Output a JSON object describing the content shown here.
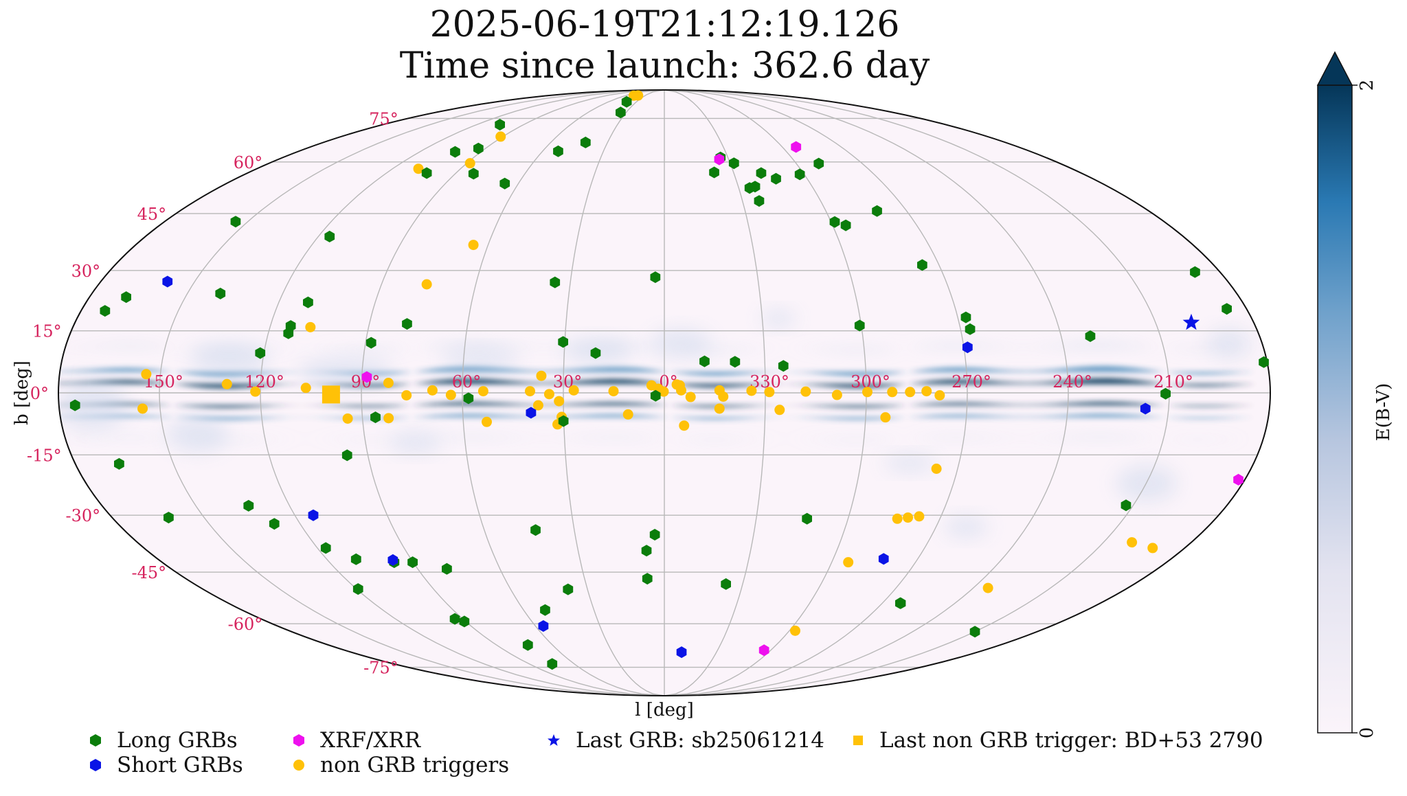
{
  "title": {
    "line1": "2025-06-19T21:12:19.126",
    "line2": "Time since launch: 362.6 day"
  },
  "chart_data": {
    "type": "scatter",
    "projection": "mollweide",
    "xlabel": "l [deg]",
    "ylabel": "b [deg]",
    "longitude_ticks": [
      "150°",
      "120°",
      "90°",
      "60°",
      "30°",
      "0°",
      "330°",
      "300°",
      "270°",
      "240°",
      "210°"
    ],
    "latitude_ticks": [
      "75°",
      "60°",
      "45°",
      "30°",
      "15°",
      "0°",
      "-15°",
      "-30°",
      "-45°",
      "-60°",
      "-75°"
    ],
    "grid": true,
    "colorbar": {
      "label": "E(B-V)",
      "min_label": "0",
      "max_label": "2",
      "min": 0,
      "max": 2,
      "extend": "max"
    },
    "colors": {
      "long_grb": "#0b7d0b",
      "short_grb": "#0a14e6",
      "xrf": "#ee10ee",
      "non_grb": "#ffc107",
      "grid": "#b8b8b8",
      "tick": "#d6245e",
      "dust_dark": "#053658",
      "dust_mid": "#2f7ab0",
      "dust_light": "#c6d4ea",
      "background": "#fbf4fa"
    },
    "legend": [
      {
        "key": "long_grb",
        "label": "Long GRBs"
      },
      {
        "key": "short_grb",
        "label": "Short GRBs"
      },
      {
        "key": "xrf",
        "label": "XRF/XRR"
      },
      {
        "key": "non_grb",
        "label": "non GRB triggers"
      },
      {
        "key": "last_grb",
        "label": "Last GRB: sb25061214"
      },
      {
        "key": "last_non_grb",
        "label": "Last non GRB trigger: BD+53 2790"
      }
    ],
    "series": [
      {
        "name": "Long GRBs",
        "key": "long_grb",
        "points": [
          [
            154.4,
            42.8
          ],
          [
            168.5,
            23.3
          ],
          [
            172.6,
            19.9
          ],
          [
            139.6,
            24.2
          ],
          [
            116.1,
            38.8
          ],
          [
            110.9,
            22.0
          ],
          [
            113.8,
            16.2
          ],
          [
            113.9,
            14.4
          ],
          [
            121.1,
            9.6
          ],
          [
            88.3,
            12.1
          ],
          [
            78.5,
            16.7
          ],
          [
            93.5,
            64.3
          ],
          [
            102.6,
            63.2
          ],
          [
            105.1,
            72.6
          ],
          [
            102.6,
            56.6
          ],
          [
            82.1,
            56.4
          ],
          [
            65.6,
            53.5
          ],
          [
            52.3,
            63.4
          ],
          [
            40.4,
            82.2
          ],
          [
            34.3,
            77.4
          ],
          [
            41.6,
            66.3
          ],
          [
            2.9,
            28.3
          ],
          [
            30.5,
            12.3
          ],
          [
            20.6,
            9.6
          ],
          [
            34.9,
            27.0
          ],
          [
            -12.0,
            7.6
          ],
          [
            -21.1,
            7.5
          ],
          [
            -35.5,
            6.5
          ],
          [
            -59.5,
            16.3
          ],
          [
            -64.7,
            41.8
          ],
          [
            -70.2,
            59.5
          ],
          [
            -58.1,
            56.2
          ],
          [
            -61.3,
            42.7
          ],
          [
            -34.4,
            52.2
          ],
          [
            -36.4,
            48.5
          ],
          [
            -41.8,
            56.6
          ],
          [
            -36.8,
            52.6
          ],
          [
            -26.5,
            61.4
          ],
          [
            -31.7,
            59.6
          ],
          [
            -21.6,
            56.8
          ],
          [
            -46.9,
            54.9
          ],
          [
            -79.0,
            45.7
          ],
          [
            -84.5,
            31.4
          ],
          [
            -92.5,
            18.3
          ],
          [
            -92.9,
            15.4
          ],
          [
            -128.8,
            13.7
          ],
          [
            -171.9,
            29.6
          ],
          [
            -173.9,
            20.4
          ],
          [
            -179.0,
            7.4
          ],
          [
            -148.9,
            -0.2
          ],
          [
            -150.0,
            -62.5
          ],
          [
            -147.7,
            -27.5
          ],
          [
            -97.4,
            -53.8
          ],
          [
            -97.6,
            -53.8
          ],
          [
            -23.6,
            -48.3
          ],
          [
            -46.6,
            -30.9
          ],
          [
            3.2,
            -35.0
          ],
          [
            6.2,
            -39.2
          ],
          [
            6.4,
            -46.8
          ],
          [
            2.6,
            -0.7
          ],
          [
            30.1,
            -6.8
          ],
          [
            58.2,
            -1.3
          ],
          [
            42.9,
            -33.8
          ],
          [
            37.6,
            -49.8
          ],
          [
            50.8,
            -55.8
          ],
          [
            86.1,
            -5.9
          ],
          [
            96.3,
            -15.1
          ],
          [
            96.8,
            -42.3
          ],
          [
            119.4,
            -49.7
          ],
          [
            117.1,
            -38.5
          ],
          [
            128.5,
            -32.2
          ],
          [
            133.1,
            -27.6
          ],
          [
            161.6,
            -30.6
          ],
          [
            166.6,
            -17.2
          ],
          [
            175.2,
            -3.0
          ],
          [
            90.6,
            -59.3
          ],
          [
            93.5,
            -58.5
          ],
          [
            90.2,
            -42.3
          ],
          [
            73.2,
            -66.9
          ],
          [
            74.7,
            -73.7
          ],
          [
            79.4,
            -44.1
          ],
          [
            109.6,
            -41.5
          ]
        ]
      },
      {
        "name": "Short GRBs",
        "key": "short_grb",
        "points": [
          [
            158.7,
            27.2
          ],
          [
            -91.1,
            11.0
          ],
          [
            -143.1,
            -3.8
          ],
          [
            96.7,
            -41.7
          ],
          [
            114.0,
            -30.0
          ],
          [
            39.7,
            -4.8
          ],
          [
            -77.9,
            -41.4
          ],
          [
            56.3,
            -60.7
          ],
          [
            -9.9,
            -69.4
          ]
        ]
      },
      {
        "name": "XRF/XRR",
        "key": "xrf",
        "points": [
          [
            88.5,
            3.8
          ],
          [
            -25.6,
            60.8
          ],
          [
            -67.0,
            64.8
          ],
          [
            -178.0,
            -21.1
          ],
          [
            -56.2,
            -68.7
          ]
        ]
      },
      {
        "name": "non GRB triggers",
        "key": "non_grb",
        "points": [
          [
            47.2,
            85.5
          ],
          [
            41.0,
            85.6
          ],
          [
            91.2,
            68.3
          ],
          [
            108.6,
            57.9
          ],
          [
            88.5,
            59.6
          ],
          [
            65.0,
            36.6
          ],
          [
            75.6,
            26.5
          ],
          [
            107.7,
            15.9
          ],
          [
            154.2,
            4.5
          ],
          [
            130.0,
            2.1
          ],
          [
            121.5,
            0.3
          ],
          [
            106.5,
            1.2
          ],
          [
            94.4,
            -6.2
          ],
          [
            82.2,
            -6.1
          ],
          [
            82.0,
            2.4
          ],
          [
            76.6,
            -0.6
          ],
          [
            68.9,
            0.6
          ],
          [
            63.4,
            -0.5
          ],
          [
            53.8,
            0.4
          ],
          [
            39.9,
            0.4
          ],
          [
            34.2,
            -0.3
          ],
          [
            31.3,
            -2.0
          ],
          [
            30.6,
            -5.8
          ],
          [
            37.5,
            -3.0
          ],
          [
            26.9,
            0.6
          ],
          [
            36.6,
            4.1
          ],
          [
            15.1,
            0.4
          ],
          [
            3.8,
            1.8
          ],
          [
            1.8,
            1.0
          ],
          [
            0.2,
            0.3
          ],
          [
            -3.7,
            2.0
          ],
          [
            -5.0,
            0.6
          ],
          [
            -7.8,
            -1.0
          ],
          [
            -16.4,
            0.6
          ],
          [
            -17.5,
            -0.9
          ],
          [
            -25.9,
            0.5
          ],
          [
            -31.2,
            0.2
          ],
          [
            -42.0,
            0.3
          ],
          [
            -51.3,
            -0.5
          ],
          [
            -60.3,
            0.2
          ],
          [
            -67.7,
            0.2
          ],
          [
            -73.0,
            0.2
          ],
          [
            -77.9,
            0.4
          ],
          [
            -81.8,
            -0.6
          ],
          [
            -34.3,
            -4.1
          ],
          [
            -65.9,
            -5.9
          ],
          [
            -5.9,
            -7.9
          ],
          [
            -4.6,
            1.8
          ],
          [
            10.8,
            -5.2
          ],
          [
            53.0,
            -7.0
          ],
          [
            31.9,
            -7.6
          ],
          [
            -16.4,
            -3.8
          ],
          [
            -83.5,
            -18.4
          ],
          [
            -76.1,
            -30.9
          ],
          [
            -79.4,
            -30.6
          ],
          [
            -82.9,
            -30.3
          ],
          [
            -65.9,
            -42.3
          ],
          [
            -125.7,
            -49.4
          ],
          [
            -159.7,
            -37.0
          ],
          [
            -168.9,
            -38.5
          ],
          [
            -62.8,
            -62.2
          ],
          [
            -204.8,
            -3.8
          ]
        ]
      },
      {
        "name": "Last GRB: sb25061214",
        "key": "last_grb",
        "points": [
          [
            -160.9,
            17.0
          ]
        ]
      },
      {
        "name": "Last non GRB trigger: BD+53 2790",
        "key": "last_non_grb",
        "points": [
          [
            99.0,
            -0.4
          ]
        ]
      }
    ]
  }
}
